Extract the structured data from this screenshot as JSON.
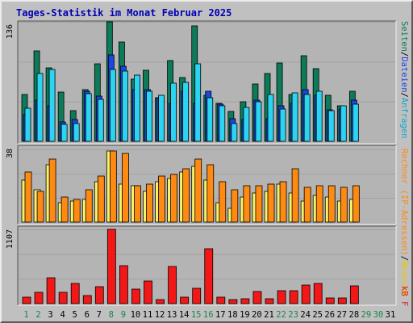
{
  "title": "Tages-Statistik im Monat Februar 2025",
  "colors": {
    "background": "#c0c0c0",
    "plot_background": "#b4b4b4",
    "pages": "#0d7a5a",
    "files": "#1b46e0",
    "hits": "#2ad4f2",
    "visits": "#f8f26a",
    "sites": "#ff8a12",
    "kbytes": "#f21818",
    "title": "#0000b4",
    "day_weekday": "#000000",
    "day_weekend": "#188848",
    "right_labels": {
      "Seiten": "#0d7a5a",
      "Dateien": "#1b46e0",
      "Anfragen": "#10a8c8",
      "Rechner (IP-Adressen)": "#ff8a12",
      "Besuche": "#e8c800",
      "kB F": "#e81818"
    }
  },
  "chart_data": [
    {
      "type": "bar",
      "panel": "requests",
      "ylabel": "136",
      "ylim": [
        0,
        136
      ],
      "right_label": [
        "Seiten",
        "/",
        "Dateien",
        "/",
        "Anfragen"
      ],
      "categories": [
        "1",
        "2",
        "3",
        "4",
        "5",
        "6",
        "7",
        "8",
        "9",
        "10",
        "11",
        "12",
        "13",
        "14",
        "15",
        "16",
        "17",
        "18",
        "19",
        "20",
        "21",
        "22",
        "23",
        "24",
        "25",
        "26",
        "27",
        "28"
      ],
      "series": [
        {
          "name": "Seiten",
          "values": [
            53,
            103,
            84,
            56,
            35,
            59,
            88,
            136,
            113,
            71,
            81,
            50,
            92,
            73,
            131,
            52,
            43,
            34,
            45,
            65,
            77,
            89,
            53,
            97,
            83,
            52,
            40,
            57
          ]
        },
        {
          "name": "Dateien",
          "values": [
            30,
            47,
            40,
            22,
            25,
            57,
            51,
            98,
            85,
            59,
            59,
            50,
            43,
            57,
            43,
            57,
            42,
            26,
            25,
            47,
            26,
            40,
            43,
            59,
            52,
            36,
            37,
            47
          ]
        },
        {
          "name": "Anfragen",
          "values": [
            38,
            77,
            82,
            19,
            20,
            54,
            48,
            82,
            80,
            75,
            57,
            52,
            66,
            67,
            88,
            50,
            40,
            20,
            39,
            45,
            53,
            37,
            55,
            53,
            57,
            35,
            40,
            42
          ]
        }
      ]
    },
    {
      "type": "bar",
      "panel": "visitors",
      "ylabel": "38",
      "ylim": [
        0,
        38
      ],
      "right_label": [
        "Rechner (IP-Adressen)",
        "/",
        "Besuche"
      ],
      "categories": [
        "1",
        "2",
        "3",
        "4",
        "5",
        "6",
        "7",
        "8",
        "9",
        "10",
        "11",
        "12",
        "13",
        "14",
        "15",
        "16",
        "17",
        "18",
        "19",
        "20",
        "21",
        "22",
        "23",
        "24",
        "25",
        "26",
        "27",
        "28"
      ],
      "series": [
        {
          "name": "Besuche",
          "values": [
            22,
            17,
            30,
            10,
            11,
            12,
            21,
            37,
            20,
            19,
            16,
            21,
            23,
            26,
            29,
            22,
            10,
            7,
            13,
            15,
            16,
            20,
            15,
            11,
            14,
            13,
            11,
            12
          ]
        },
        {
          "name": "Rechner (IP-Adressen)",
          "values": [
            26,
            16,
            33,
            13,
            12,
            17,
            24,
            37,
            36,
            19,
            20,
            24,
            25,
            28,
            33,
            30,
            21,
            17,
            19,
            19,
            20,
            21,
            28,
            18,
            19,
            19,
            18,
            19
          ]
        }
      ]
    },
    {
      "type": "bar",
      "panel": "kbytes",
      "ylabel": "1107",
      "ylim": [
        0,
        1107
      ],
      "right_label": [
        "kB F"
      ],
      "categories": [
        "1",
        "2",
        "3",
        "4",
        "5",
        "6",
        "7",
        "8",
        "9",
        "10",
        "11",
        "12",
        "13",
        "14",
        "15",
        "16",
        "17",
        "18",
        "19",
        "20",
        "21",
        "22",
        "23",
        "24",
        "25",
        "26",
        "27",
        "28"
      ],
      "series": [
        {
          "name": "kB F",
          "values": [
            101,
            165,
            386,
            165,
            303,
            118,
            258,
            1107,
            570,
            213,
            331,
            57,
            551,
            92,
            229,
            816,
            92,
            66,
            74,
            175,
            77,
            193,
            193,
            276,
            303,
            81,
            84,
            267
          ]
        }
      ]
    }
  ],
  "days": [
    "1",
    "2",
    "3",
    "4",
    "5",
    "6",
    "7",
    "8",
    "9",
    "10",
    "11",
    "12",
    "13",
    "14",
    "15",
    "16",
    "17",
    "18",
    "19",
    "20",
    "21",
    "22",
    "23",
    "24",
    "25",
    "26",
    "27",
    "28",
    "29",
    "30",
    "31"
  ],
  "weekend_days": [
    "1",
    "2",
    "8",
    "9",
    "15",
    "16",
    "22",
    "23",
    "29",
    "30"
  ]
}
